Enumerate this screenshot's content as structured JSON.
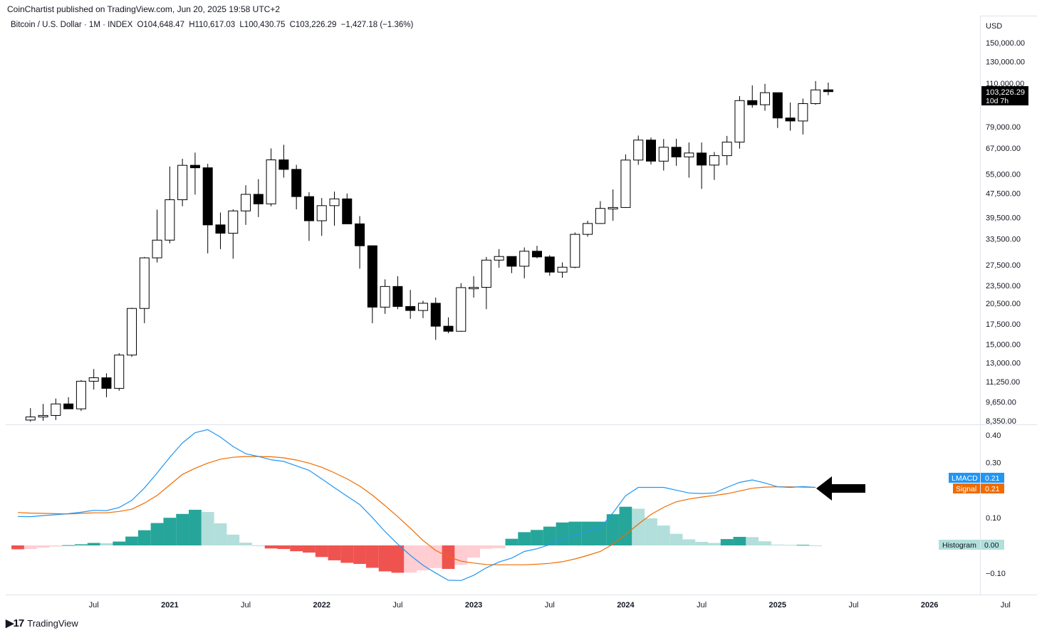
{
  "header": {
    "publisher": "CoinChartist published on TradingView.com, Jun 20, 2025 19:58 UTC+2",
    "symbol": "Bitcoin / U.S. Dollar · 1M · INDEX",
    "open": "O104,648.47",
    "high": "H110,617.03",
    "low": "L100,430.75",
    "close": "C103,226.29",
    "change": "−1,427.18 (−1.36%)"
  },
  "price_axis": {
    "currency": "USD",
    "last_price": "103,226.29",
    "countdown": "10d 7h",
    "ticks": [
      "150,000.00",
      "130,000.00",
      "110,000.00",
      "79,000.00",
      "67,000.00",
      "55,000.00",
      "47,500.00",
      "39,500.00",
      "33,500.00",
      "27,500.00",
      "23,500.00",
      "20,500.00",
      "17,500.00",
      "15,000.00",
      "13,000.00",
      "11,250.00",
      "9,650.00",
      "8,350.00"
    ]
  },
  "macd_axis": {
    "ticks": [
      "0.40",
      "0.30",
      "0.10",
      "−0.10"
    ],
    "lmacd_label": "LMACD",
    "lmacd_value": "0.21",
    "signal_label": "Signal",
    "signal_value": "0.21",
    "hist_label": "Histogram",
    "hist_value": "0.00"
  },
  "time_axis": [
    "Jul",
    "2021",
    "Jul",
    "2022",
    "Jul",
    "2023",
    "Jul",
    "2024",
    "Jul",
    "2025",
    "Jul",
    "2026",
    "Jul"
  ],
  "footer": {
    "brand": "TradingView"
  },
  "colors": {
    "up": "#ffffff",
    "down": "#000000",
    "lmacd": "#2196f3",
    "signal": "#ef6c00",
    "hist_pos_strong": "#26a69a",
    "hist_pos_weak": "#b2dfdb",
    "hist_neg_strong": "#ef5350",
    "hist_neg_weak": "#ffcdd2"
  },
  "chart_data": [
    {
      "type": "candlestick",
      "title": "Bitcoin / U.S. Dollar · 1M · INDEX",
      "scale": "log",
      "x_start": "2020-02",
      "interval": "1M",
      "ohlc": [
        [
          8400,
          9200,
          8300,
          8600
        ],
        [
          8600,
          9500,
          8350,
          8700
        ],
        [
          8700,
          9900,
          8400,
          9500
        ],
        [
          9500,
          10000,
          9200,
          9150
        ],
        [
          9150,
          11400,
          9000,
          11300
        ],
        [
          11300,
          12400,
          10600,
          11600
        ],
        [
          11600,
          12000,
          10000,
          10700
        ],
        [
          10700,
          14000,
          10500,
          13800
        ],
        [
          13800,
          19800,
          13600,
          19700
        ],
        [
          19700,
          29200,
          17600,
          29000
        ],
        [
          29000,
          41900,
          28000,
          33200
        ],
        [
          33200,
          58300,
          32400,
          45200
        ],
        [
          45200,
          61800,
          43000,
          58800
        ],
        [
          58800,
          64800,
          47000,
          57700
        ],
        [
          57700,
          59500,
          30000,
          37300
        ],
        [
          37300,
          41000,
          31000,
          35000
        ],
        [
          35000,
          42000,
          28800,
          41500
        ],
        [
          41500,
          50500,
          37300,
          47100
        ],
        [
          47100,
          52900,
          39600,
          43800
        ],
        [
          43800,
          66900,
          43000,
          61300
        ],
        [
          61300,
          68800,
          53500,
          57000
        ],
        [
          57000,
          59000,
          42000,
          46300
        ],
        [
          46300,
          47900,
          33000,
          38500
        ],
        [
          38500,
          45800,
          34300,
          43200
        ],
        [
          43200,
          48100,
          37100,
          45500
        ],
        [
          45500,
          47400,
          37700,
          37600
        ],
        [
          37600,
          39900,
          26700,
          31800
        ],
        [
          31800,
          31900,
          17600,
          19900
        ],
        [
          19900,
          24600,
          18900,
          23300
        ],
        [
          23300,
          25200,
          19600,
          20000
        ],
        [
          20000,
          22700,
          18200,
          19400
        ],
        [
          19400,
          20900,
          18300,
          20500
        ],
        [
          20500,
          21400,
          15500,
          17200
        ],
        [
          17200,
          18400,
          16300,
          16550
        ],
        [
          16550,
          23900,
          16500,
          23100
        ],
        [
          23100,
          25200,
          21400,
          23150
        ],
        [
          23150,
          29200,
          19600,
          28500
        ],
        [
          28500,
          31000,
          26900,
          29300
        ],
        [
          29300,
          28500,
          25800,
          27200
        ],
        [
          27200,
          31400,
          24800,
          30500
        ],
        [
          30500,
          31800,
          28900,
          29200
        ],
        [
          29200,
          29600,
          25300,
          26000
        ],
        [
          26000,
          28000,
          24900,
          27000
        ],
        [
          27000,
          35200,
          26800,
          34700
        ],
        [
          34700,
          38500,
          34100,
          37700
        ],
        [
          37700,
          44700,
          37600,
          42300
        ],
        [
          42300,
          48900,
          38500,
          42600
        ],
        [
          42600,
          63900,
          42500,
          61200
        ],
        [
          61200,
          73800,
          59000,
          71300
        ],
        [
          71300,
          72700,
          59200,
          60700
        ],
        [
          60700,
          71900,
          56500,
          67500
        ],
        [
          67500,
          72000,
          58600,
          62700
        ],
        [
          62700,
          70000,
          53500,
          64600
        ],
        [
          64600,
          70000,
          49100,
          58900
        ],
        [
          58900,
          65100,
          52600,
          63300
        ],
        [
          63300,
          73600,
          58900,
          70200
        ],
        [
          70200,
          99800,
          66800,
          96400
        ],
        [
          96400,
          108300,
          91300,
          93400
        ],
        [
          93400,
          109600,
          89200,
          102400
        ],
        [
          102400,
          102500,
          78200,
          84400
        ],
        [
          84400,
          95000,
          76600,
          82500
        ],
        [
          82500,
          97900,
          74400,
          94200
        ],
        [
          94200,
          111900,
          93400,
          104600
        ],
        [
          104648.47,
          110617.03,
          100430.75,
          103226.29
        ]
      ]
    },
    {
      "type": "line",
      "title": "LMACD",
      "x_start": "2020-01",
      "series": [
        {
          "name": "LMACD",
          "values": [
            0.105,
            0.104,
            0.108,
            0.111,
            0.115,
            0.12,
            0.127,
            0.126,
            0.137,
            0.163,
            0.208,
            0.262,
            0.319,
            0.371,
            0.408,
            0.419,
            0.392,
            0.358,
            0.332,
            0.322,
            0.31,
            0.304,
            0.288,
            0.272,
            0.241,
            0.209,
            0.178,
            0.148,
            0.101,
            0.05,
            0.005,
            -0.036,
            -0.072,
            -0.1,
            -0.126,
            -0.127,
            -0.108,
            -0.081,
            -0.06,
            -0.046,
            -0.022,
            -0.012,
            0.003,
            0.024,
            0.037,
            0.05,
            0.064,
            0.118,
            0.18,
            0.21,
            0.21,
            0.21,
            0.2,
            0.19,
            0.188,
            0.19,
            0.21,
            0.228,
            0.237,
            0.226,
            0.212,
            0.21,
            0.213,
            0.21
          ]
        },
        {
          "name": "Signal",
          "values": [
            0.119,
            0.117,
            0.116,
            0.115,
            0.114,
            0.116,
            0.118,
            0.118,
            0.123,
            0.131,
            0.153,
            0.181,
            0.219,
            0.257,
            0.279,
            0.298,
            0.312,
            0.319,
            0.322,
            0.322,
            0.321,
            0.317,
            0.309,
            0.298,
            0.283,
            0.263,
            0.241,
            0.215,
            0.182,
            0.144,
            0.104,
            0.062,
            0.018,
            -0.018,
            -0.041,
            -0.057,
            -0.064,
            -0.069,
            -0.07,
            -0.07,
            -0.07,
            -0.068,
            -0.065,
            -0.059,
            -0.049,
            -0.036,
            -0.022,
            0.005,
            0.04,
            0.077,
            0.112,
            0.138,
            0.158,
            0.168,
            0.175,
            0.181,
            0.187,
            0.197,
            0.207,
            0.211,
            0.212,
            0.212,
            0.211,
            0.21
          ]
        }
      ]
    },
    {
      "type": "bar",
      "title": "Histogram",
      "x_start": "2020-01",
      "values": [
        -0.014,
        -0.013,
        -0.008,
        -0.004,
        0.001,
        0.004,
        0.009,
        0.008,
        0.014,
        0.032,
        0.055,
        0.081,
        0.1,
        0.114,
        0.129,
        0.121,
        0.08,
        0.039,
        0.01,
        0,
        -0.011,
        -0.013,
        -0.021,
        -0.026,
        -0.042,
        -0.054,
        -0.063,
        -0.067,
        -0.081,
        -0.094,
        -0.099,
        -0.098,
        -0.09,
        -0.082,
        -0.085,
        -0.07,
        -0.044,
        -0.012,
        -0.01,
        0.024,
        0.048,
        0.056,
        0.068,
        0.083,
        0.086,
        0.086,
        0.086,
        0.113,
        0.14,
        0.133,
        0.098,
        0.072,
        0.042,
        0.022,
        0.013,
        0.009,
        0.023,
        0.031,
        0.03,
        0.015,
        0.003,
        0.002,
        0.002,
        0.0
      ]
    }
  ]
}
